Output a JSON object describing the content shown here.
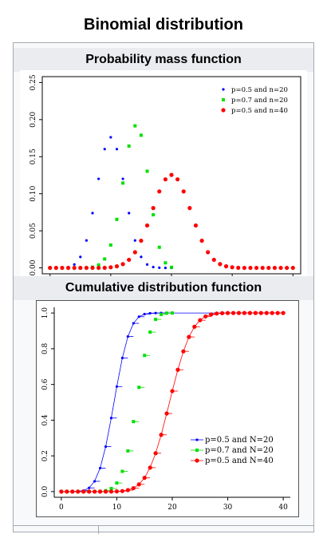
{
  "page": {
    "title": "Binomial distribution"
  },
  "sections": {
    "pmf_title": "Probability mass function",
    "cdf_title": "Cumulative distribution function"
  },
  "colors": {
    "blue": "#0000ff",
    "green": "#00e000",
    "red": "#ff0000"
  },
  "chart_data": [
    {
      "type": "scatter",
      "title": "",
      "xlabel": "",
      "ylabel": "",
      "xlim": [
        0,
        40
      ],
      "ylim": [
        0,
        0.25
      ],
      "x_ticks": [
        "0",
        "10",
        "20",
        "30",
        "40"
      ],
      "y_ticks": [
        "0.00",
        "0.05",
        "0.10",
        "0.15",
        "0.20",
        "0.25"
      ],
      "legend_position": "top-right",
      "series": [
        {
          "name": "p=0.5 and n=20",
          "color": "#0000ff",
          "marker": "dot",
          "x": [
            0,
            1,
            2,
            3,
            4,
            5,
            6,
            7,
            8,
            9,
            10,
            11,
            12,
            13,
            14,
            15,
            16,
            17,
            18,
            19,
            20
          ],
          "y": [
            0.0,
            0.0,
            0.0002,
            0.0011,
            0.0046,
            0.0148,
            0.037,
            0.0739,
            0.1201,
            0.1602,
            0.1762,
            0.1602,
            0.1201,
            0.0739,
            0.037,
            0.0148,
            0.0046,
            0.0011,
            0.0002,
            0.0,
            0.0
          ]
        },
        {
          "name": "p=0.7 and n=20",
          "color": "#00e000",
          "marker": "square",
          "x": [
            0,
            1,
            2,
            3,
            4,
            5,
            6,
            7,
            8,
            9,
            10,
            11,
            12,
            13,
            14,
            15,
            16,
            17,
            18,
            19,
            20
          ],
          "y": [
            0.0,
            0.0,
            0.0,
            0.0,
            0.0,
            0.0,
            0.0002,
            0.001,
            0.0039,
            0.012,
            0.0308,
            0.0654,
            0.1144,
            0.1643,
            0.1916,
            0.1789,
            0.1304,
            0.0716,
            0.0278,
            0.0068,
            0.0008
          ]
        },
        {
          "name": "p=0.5 and n=40",
          "color": "#ff0000",
          "marker": "circle",
          "x": [
            0,
            1,
            2,
            3,
            4,
            5,
            6,
            7,
            8,
            9,
            10,
            11,
            12,
            13,
            14,
            15,
            16,
            17,
            18,
            19,
            20,
            21,
            22,
            23,
            24,
            25,
            26,
            27,
            28,
            29,
            30,
            31,
            32,
            33,
            34,
            35,
            36,
            37,
            38,
            39,
            40
          ],
          "y": [
            0.0,
            0.0,
            0.0,
            0.0,
            0.0,
            0.0,
            0.0,
            0.0,
            0.0,
            0.0001,
            0.0008,
            0.0021,
            0.0051,
            0.0109,
            0.0211,
            0.0366,
            0.0572,
            0.0807,
            0.1031,
            0.1194,
            0.1254,
            0.1194,
            0.1031,
            0.0807,
            0.0572,
            0.0366,
            0.0211,
            0.0109,
            0.0051,
            0.0021,
            0.0008,
            0.0001,
            0.0,
            0.0,
            0.0,
            0.0,
            0.0,
            0.0,
            0.0,
            0.0,
            0.0
          ]
        }
      ]
    },
    {
      "type": "scatter",
      "title": "",
      "xlabel": "",
      "ylabel": "",
      "xlim": [
        0,
        40
      ],
      "ylim": [
        0,
        1.0
      ],
      "x_ticks": [
        "0",
        "10",
        "20",
        "30",
        "40"
      ],
      "y_ticks": [
        "0.0",
        "0.2",
        "0.4",
        "0.6",
        "0.8",
        "1.0"
      ],
      "legend_position": "bottom-right",
      "series": [
        {
          "name": "p=0.5 and N=20",
          "color": "#0000ff",
          "marker": "dot",
          "x": [
            0,
            1,
            2,
            3,
            4,
            5,
            6,
            7,
            8,
            9,
            10,
            11,
            12,
            13,
            14,
            15,
            16,
            17,
            18,
            19,
            20
          ],
          "y": [
            0.0,
            0.0,
            0.0002,
            0.0013,
            0.0059,
            0.0207,
            0.0577,
            0.1316,
            0.2517,
            0.4119,
            0.5881,
            0.7483,
            0.8684,
            0.9423,
            0.9793,
            0.9941,
            0.9987,
            0.9998,
            1.0,
            1.0,
            1.0
          ]
        },
        {
          "name": "p=0.7 and N=20",
          "color": "#00e000",
          "marker": "square",
          "x": [
            0,
            1,
            2,
            3,
            4,
            5,
            6,
            7,
            8,
            9,
            10,
            11,
            12,
            13,
            14,
            15,
            16,
            17,
            18,
            19,
            20
          ],
          "y": [
            0.0,
            0.0,
            0.0,
            0.0,
            0.0,
            0.0,
            0.0003,
            0.0013,
            0.0051,
            0.0171,
            0.048,
            0.1133,
            0.2277,
            0.392,
            0.5836,
            0.7625,
            0.8929,
            0.9645,
            0.9924,
            0.9992,
            1.0
          ]
        },
        {
          "name": "p=0.5 and N=40",
          "color": "#ff0000",
          "marker": "circle",
          "x": [
            0,
            1,
            2,
            3,
            4,
            5,
            6,
            7,
            8,
            9,
            10,
            11,
            12,
            13,
            14,
            15,
            16,
            17,
            18,
            19,
            20,
            21,
            22,
            23,
            24,
            25,
            26,
            27,
            28,
            29,
            30,
            31,
            32,
            33,
            34,
            35,
            36,
            37,
            38,
            39,
            40
          ],
          "y": [
            0.0,
            0.0,
            0.0,
            0.0,
            0.0,
            0.0,
            0.0,
            0.0,
            0.0,
            0.0001,
            0.0009,
            0.003,
            0.0083,
            0.0192,
            0.0403,
            0.0769,
            0.1341,
            0.2148,
            0.3179,
            0.4373,
            0.5627,
            0.6821,
            0.7852,
            0.8659,
            0.9231,
            0.9597,
            0.9808,
            0.9917,
            0.997,
            0.9991,
            0.9999,
            1.0,
            1.0,
            1.0,
            1.0,
            1.0,
            1.0,
            1.0,
            1.0,
            1.0,
            1.0
          ]
        }
      ]
    }
  ]
}
